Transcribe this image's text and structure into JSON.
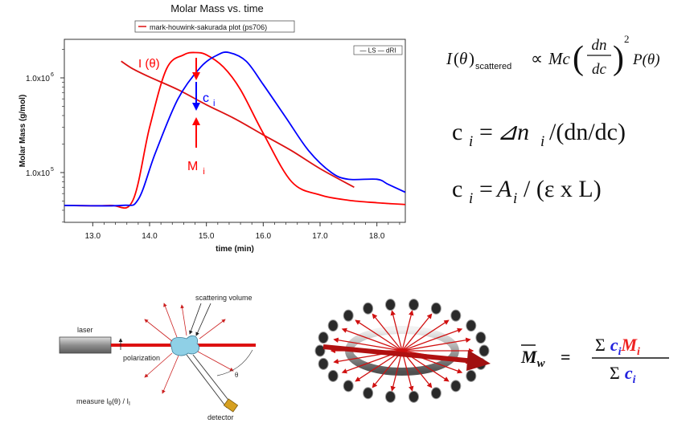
{
  "chart": {
    "title": "Molar Mass vs. time",
    "legend_top_label": "mark-houwink-sakurada plot (ps706)",
    "legend_inner_label": "— LS — dRI",
    "xlabel": "time (min)",
    "ylabel": "Molar Mass (g/mol)",
    "xticks": [
      "13.0",
      "14.0",
      "15.0",
      "16.0",
      "17.0",
      "18.0"
    ],
    "yticks": [
      "1.0x10",
      "1.0x10"
    ],
    "ytick_exponents": [
      "6",
      "5"
    ],
    "annotation_I": "I (θ)",
    "annotation_c": "c",
    "annotation_c_sub": "i",
    "annotation_M": "M",
    "annotation_M_sub": "i",
    "colors": {
      "ls": "#ff0000",
      "dri": "#0000ff",
      "mhs": "#dd1111",
      "annot_c": "#0000ff",
      "annot_red": "#ff0000"
    }
  },
  "chart_data": {
    "type": "line",
    "title": "Molar Mass vs. time",
    "xlabel": "time (min)",
    "ylabel": "Molar Mass (g/mol)",
    "xlim": [
      12.5,
      18.5
    ],
    "yscale": "log",
    "legend": "top-right",
    "series": [
      {
        "name": "mark-houwink-sakurada plot (ps706)",
        "color": "#dd1111",
        "x": [
          13.5,
          13.7,
          14.0,
          14.5,
          15.0,
          15.5,
          16.0,
          16.5,
          17.0,
          17.6
        ],
        "y": [
          1500000,
          1250000,
          1020000,
          750000,
          520000,
          370000,
          250000,
          170000,
          110000,
          70000
        ]
      },
      {
        "name": "LS",
        "color": "#ff0000",
        "x": [
          12.5,
          13.3,
          13.7,
          14.0,
          14.3,
          14.6,
          14.8,
          15.0,
          15.3,
          15.6,
          16.0,
          16.5,
          17.0,
          17.5,
          18.0,
          18.5
        ],
        "y": [
          45000,
          45000,
          50000,
          300000,
          1250000,
          1750000,
          1850000,
          1750000,
          1300000,
          750000,
          260000,
          80000,
          58000,
          51000,
          48000,
          46000
        ]
      },
      {
        "name": "dRI",
        "color": "#0000ff",
        "x": [
          12.5,
          13.5,
          13.8,
          14.1,
          14.5,
          14.9,
          15.2,
          15.4,
          15.7,
          16.0,
          16.4,
          16.8,
          17.2,
          17.5,
          18.0,
          18.2,
          18.5
        ],
        "y": [
          45000,
          45000,
          52000,
          160000,
          600000,
          1300000,
          1750000,
          1850000,
          1500000,
          850000,
          380000,
          170000,
          100000,
          85000,
          85000,
          75000,
          62000
        ]
      }
    ]
  },
  "equations": {
    "scatter_lhs": "I",
    "theta": "θ",
    "scatter_sub": "scattered",
    "proportional": "∝",
    "Mc": "Mc",
    "dn": "dn",
    "dc": "dc",
    "power": "2",
    "P": "P(θ)",
    "c_eq1_lhs": "c",
    "c_eq1_sub": "i",
    "c_eq1_eq": "=",
    "c_eq1_delta": "⊿n",
    "c_eq1_rest": "/(dn/dc)",
    "c_eq2_lhs": "c",
    "c_eq2_sub": "i",
    "c_eq2_eq": "=",
    "c_eq2_A": "A",
    "c_eq2_rest": "/ (ε x L)"
  },
  "instrument": {
    "laser_label": "laser",
    "polarization_label": "polarization",
    "scattering_volume_label": "scattering volume",
    "theta_label": "θ",
    "measure_label": "measure I",
    "measure_sub": "θ",
    "measure_rest": "(θ) / I",
    "measure_sub2": "I",
    "detector_label": "detector"
  },
  "mw_formula": {
    "lhs": "M",
    "lhs_sub": "w",
    "eq": "=",
    "num_sigma": "Σ",
    "num_c": "c",
    "num_c_sub": "i",
    "num_M": "M",
    "num_M_sub": "i",
    "den_sigma": "Σ",
    "den_c": "c",
    "den_c_sub": "i"
  }
}
